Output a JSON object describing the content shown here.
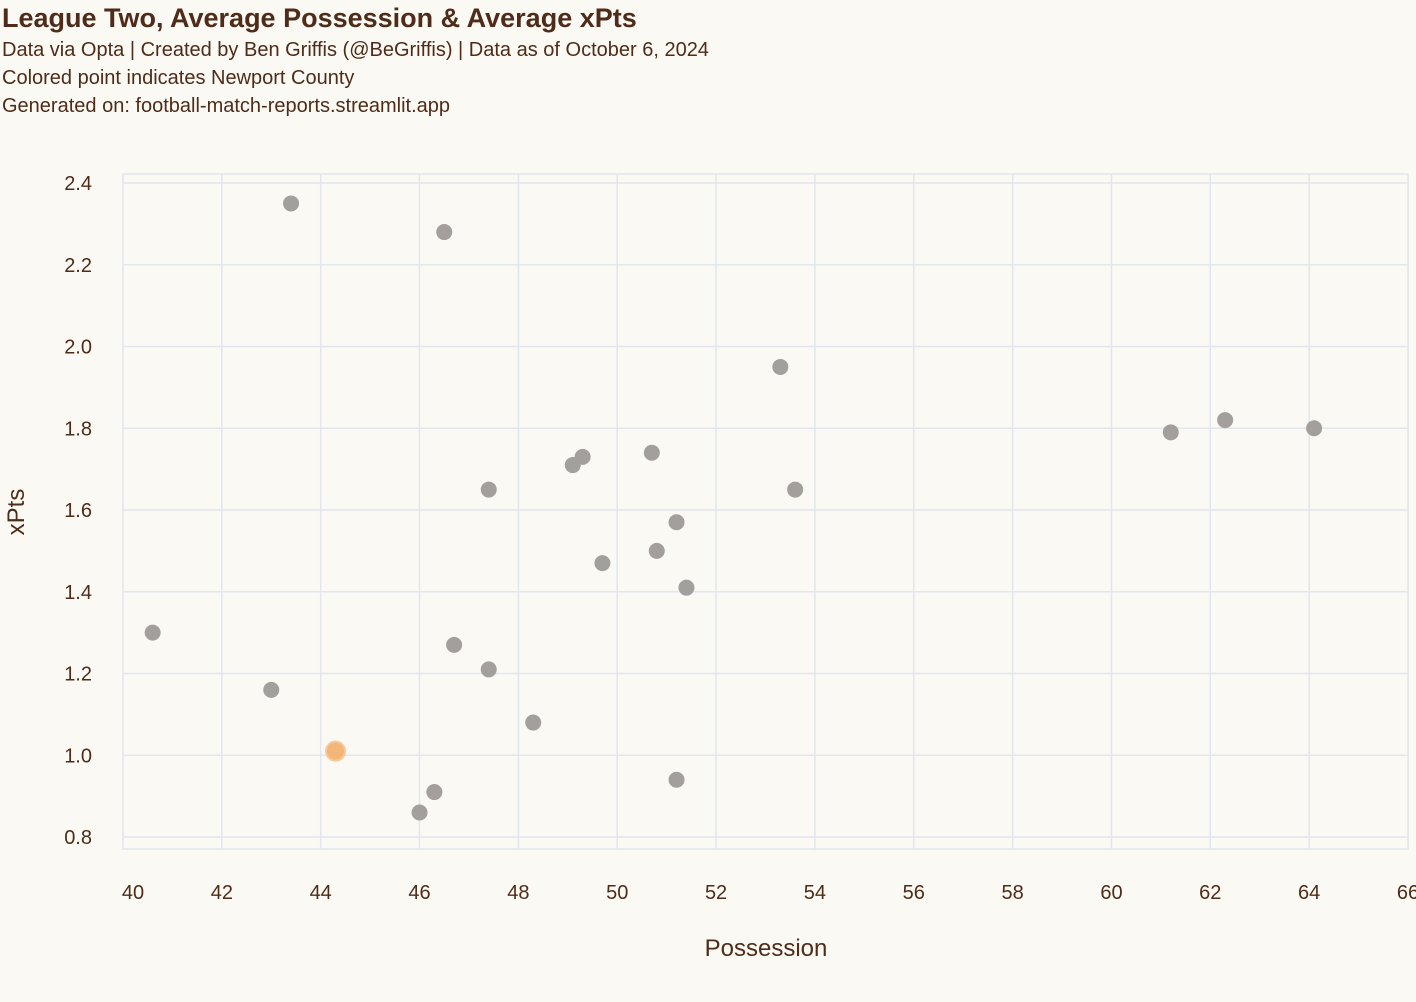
{
  "header": {
    "title": "League Two, Average Possession & Average xPts",
    "subtitle_1": "Data via Opta | Created by Ben Griffis (@BeGriffis) | Data as of October 6, 2024",
    "subtitle_2": "Colored point indicates Newport County",
    "subtitle_3": "Generated on: football-match-reports.streamlit.app"
  },
  "colors": {
    "background": "#fbf9f4",
    "text": "#4e2c19",
    "grid": "#e2e6ee",
    "point_default": "#a29f9d",
    "point_highlight": "#f2ae6b"
  },
  "chart_data": {
    "type": "scatter",
    "title": "League Two, Average Possession & Average xPts",
    "xlabel": "Possession",
    "ylabel": "xPts",
    "xlim": [
      40,
      66
    ],
    "ylim": [
      0.8,
      2.4
    ],
    "x_ticks": [
      40,
      42,
      44,
      46,
      48,
      50,
      52,
      54,
      56,
      58,
      60,
      62,
      64,
      66
    ],
    "y_ticks": [
      0.8,
      1.0,
      1.2,
      1.4,
      1.6,
      1.8,
      2.0,
      2.2,
      2.4
    ],
    "y_tick_labels": [
      "0.8",
      "1.0",
      "1.2",
      "1.4",
      "1.6",
      "1.8",
      "2.0",
      "2.2",
      "2.4"
    ],
    "grid": true,
    "points": [
      {
        "x": 43.4,
        "y": 2.35,
        "highlight": false
      },
      {
        "x": 46.5,
        "y": 2.28,
        "highlight": false
      },
      {
        "x": 53.3,
        "y": 1.95,
        "highlight": false
      },
      {
        "x": 61.2,
        "y": 1.79,
        "highlight": false
      },
      {
        "x": 62.3,
        "y": 1.82,
        "highlight": false
      },
      {
        "x": 64.1,
        "y": 1.8,
        "highlight": false
      },
      {
        "x": 49.3,
        "y": 1.73,
        "highlight": false
      },
      {
        "x": 49.1,
        "y": 1.71,
        "highlight": false
      },
      {
        "x": 50.7,
        "y": 1.74,
        "highlight": false
      },
      {
        "x": 47.4,
        "y": 1.65,
        "highlight": false
      },
      {
        "x": 53.6,
        "y": 1.65,
        "highlight": false
      },
      {
        "x": 51.2,
        "y": 1.57,
        "highlight": false
      },
      {
        "x": 50.8,
        "y": 1.5,
        "highlight": false
      },
      {
        "x": 49.7,
        "y": 1.47,
        "highlight": false
      },
      {
        "x": 51.4,
        "y": 1.41,
        "highlight": false
      },
      {
        "x": 40.6,
        "y": 1.3,
        "highlight": false
      },
      {
        "x": 46.7,
        "y": 1.27,
        "highlight": false
      },
      {
        "x": 47.4,
        "y": 1.21,
        "highlight": false
      },
      {
        "x": 43.0,
        "y": 1.16,
        "highlight": false
      },
      {
        "x": 48.3,
        "y": 1.08,
        "highlight": false
      },
      {
        "x": 44.3,
        "y": 1.01,
        "highlight": true
      },
      {
        "x": 51.2,
        "y": 0.94,
        "highlight": false
      },
      {
        "x": 46.3,
        "y": 0.91,
        "highlight": false
      },
      {
        "x": 46.0,
        "y": 0.86,
        "highlight": false
      }
    ]
  }
}
